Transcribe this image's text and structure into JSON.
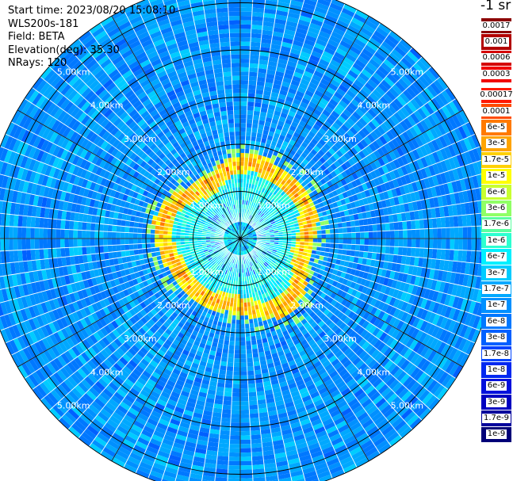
{
  "header": {
    "start_time": "Start time: 2023/08/20 15:08:10",
    "instrument": "WLS200s-181",
    "field": "Field: BETA",
    "elevation": "Elevation(deg): 35.30",
    "nrays": "NRays: 120"
  },
  "colorbar": {
    "unit_label": "-1 sr",
    "upper_levels": [
      {
        "label": "0.0017",
        "color": "#8b0000"
      },
      {
        "label": "0.001",
        "color": "#b20000"
      },
      {
        "label": "0.0006",
        "color": "#d40000"
      },
      {
        "label": "0.0003",
        "color": "#f00000"
      }
    ],
    "lower_levels": [
      {
        "label": "0.00017",
        "color": "#ff1800"
      },
      {
        "label": "0.0001",
        "color": "#ff4a00"
      },
      {
        "label": "6e-5",
        "color": "#ff7a00"
      },
      {
        "label": "3e-5",
        "color": "#ffa400"
      },
      {
        "label": "1.7e-5",
        "color": "#ffd000"
      },
      {
        "label": "1e-5",
        "color": "#ffff00"
      },
      {
        "label": "6e-6",
        "color": "#c8ff30"
      },
      {
        "label": "3e-6",
        "color": "#90ff66"
      },
      {
        "label": "1.7e-6",
        "color": "#5affa0"
      },
      {
        "label": "1e-6",
        "color": "#2cffd0"
      },
      {
        "label": "6e-7",
        "color": "#00f0ff"
      },
      {
        "label": "3e-7",
        "color": "#00ccff"
      },
      {
        "label": "1.7e-7",
        "color": "#00a8ff"
      },
      {
        "label": "1e-7",
        "color": "#0090ff"
      },
      {
        "label": "6e-8",
        "color": "#0078ff"
      },
      {
        "label": "3e-8",
        "color": "#0060ff"
      },
      {
        "label": "1.7e-8",
        "color": "#0044ff"
      },
      {
        "label": "1e-8",
        "color": "#0028f0"
      },
      {
        "label": "6e-9",
        "color": "#0010dc"
      },
      {
        "label": "3e-9",
        "color": "#0000c0"
      },
      {
        "label": "1.7e-9",
        "color": "#00009c"
      },
      {
        "label": "1e-9",
        "color": "#000078"
      }
    ]
  },
  "chart_data": {
    "type": "heatmap",
    "projection": "polar (PPI)",
    "field": "BETA",
    "elevation_deg": 35.3,
    "n_rays": 120,
    "range_ring_labels_km": [
      "1.00km",
      "2.00km",
      "3.00km",
      "4.00km",
      "5.00km"
    ],
    "max_range_km": 5.45,
    "background_level": "1e-7",
    "features": [
      {
        "description": "enhanced backscatter ring",
        "range_km": [
          1.3,
          1.7
        ],
        "peak_level": "3e-5",
        "typical_level": "1e-5"
      },
      {
        "description": "inner region",
        "range_km": [
          0,
          1.3
        ],
        "typical_level": "6e-7"
      }
    ],
    "grid": true
  }
}
